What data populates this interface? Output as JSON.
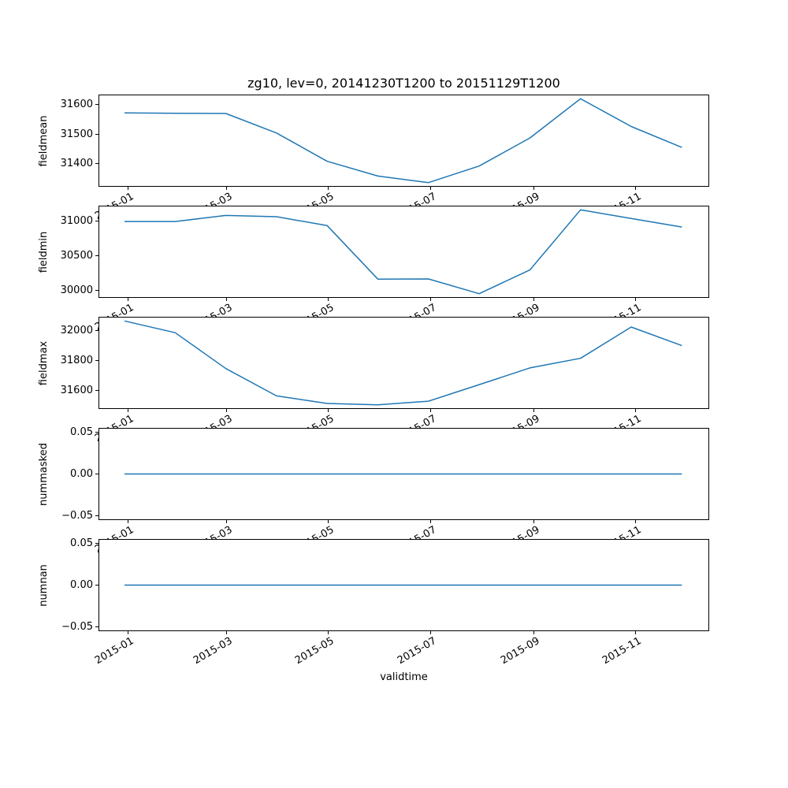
{
  "title": "zg10, lev=0, 20141230T1200 to 20151129T1200",
  "xlabel": "validtime",
  "x_tick_labels": [
    "2015-01",
    "2015-03",
    "2015-05",
    "2015-07",
    "2015-09",
    "2015-11"
  ],
  "x_categories": [
    "2015-01",
    "2015-02",
    "2015-03",
    "2015-04",
    "2015-05",
    "2015-06",
    "2015-07",
    "2015-08",
    "2015-09",
    "2015-10",
    "2015-11",
    "2015-12"
  ],
  "line_color": "#1f77b4",
  "frame_color": "#000000",
  "background_color": "#ffffff",
  "chart_data": [
    {
      "type": "line",
      "ylabel": "fieldmean",
      "values": [
        31572,
        31571,
        31570,
        31504,
        31408,
        31358,
        31336,
        31392,
        31487,
        31620,
        31526,
        31455
      ],
      "yticks": [
        31400,
        31500,
        31600
      ],
      "ytick_labels": [
        "31400",
        "31500",
        "31600"
      ],
      "ylim": [
        31321.8,
        31634.2
      ]
    },
    {
      "type": "line",
      "ylabel": "fieldmin",
      "values": [
        30995,
        30995,
        31083,
        31064,
        30936,
        30163,
        30165,
        29953,
        30295,
        31163,
        31038,
        30915
      ],
      "yticks": [
        30000,
        30500,
        31000
      ],
      "ytick_labels": [
        "30000",
        "30500",
        "31000"
      ],
      "ylim": [
        29892.5,
        31223.5
      ]
    },
    {
      "type": "line",
      "ylabel": "fieldmax",
      "values": [
        32062,
        31984,
        31746,
        31564,
        31514,
        31505,
        31529,
        31639,
        31750,
        31814,
        32022,
        31898
      ],
      "yticks": [
        31600,
        31800,
        32000
      ],
      "ytick_labels": [
        "31600",
        "31800",
        "32000"
      ],
      "ylim": [
        31477.15,
        32089.85
      ]
    },
    {
      "type": "line",
      "ylabel": "nummasked",
      "values": [
        0,
        0,
        0,
        0,
        0,
        0,
        0,
        0,
        0,
        0,
        0,
        0
      ],
      "yticks": [
        -0.05,
        0.0,
        0.05
      ],
      "ytick_labels": [
        "−0.05",
        "0.00",
        "0.05"
      ],
      "ylim": [
        -0.055,
        0.055
      ]
    },
    {
      "type": "line",
      "ylabel": "numnan",
      "values": [
        0,
        0,
        0,
        0,
        0,
        0,
        0,
        0,
        0,
        0,
        0,
        0
      ],
      "yticks": [
        -0.05,
        0.0,
        0.05
      ],
      "ytick_labels": [
        "−0.05",
        "0.00",
        "0.05"
      ],
      "ylim": [
        -0.055,
        0.055
      ]
    }
  ]
}
